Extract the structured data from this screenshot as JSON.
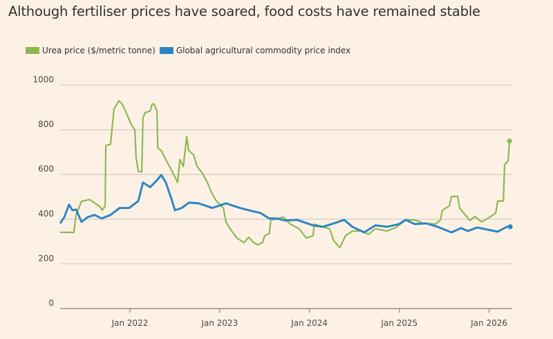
{
  "chart_data": {
    "type": "line",
    "title": "Although fertiliser prices have soared, food costs have remained stable",
    "xlabel": "",
    "ylabel": "",
    "ylim": [
      0,
      1000
    ],
    "xlim": [
      "2021-03-23",
      "2026-04-05"
    ],
    "yticks": [
      0,
      200,
      400,
      600,
      800,
      1000
    ],
    "xticks": [
      {
        "date": "2022-01-01",
        "label": "Jan 2022"
      },
      {
        "date": "2023-01-01",
        "label": "Jan 2023"
      },
      {
        "date": "2024-01-01",
        "label": "Jan 2024"
      },
      {
        "date": "2025-01-01",
        "label": "Jan 2025"
      },
      {
        "date": "2026-01-01",
        "label": "Jan 2026"
      }
    ],
    "grid": true,
    "legend_position": "top-left",
    "series": [
      {
        "name": "Urea price ($/metric tonne)",
        "color": "#8cb852",
        "end_marker": true,
        "points": [
          [
            "2021-03-23",
            341
          ],
          [
            "2021-05-18",
            341
          ],
          [
            "2021-05-27",
            420
          ],
          [
            "2021-06-18",
            480
          ],
          [
            "2021-07-22",
            488
          ],
          [
            "2021-08-13",
            470
          ],
          [
            "2021-09-02",
            455
          ],
          [
            "2021-09-10",
            440
          ],
          [
            "2021-09-22",
            459
          ],
          [
            "2021-09-25",
            729
          ],
          [
            "2021-10-14",
            735
          ],
          [
            "2021-10-28",
            893
          ],
          [
            "2021-11-17",
            930
          ],
          [
            "2021-12-01",
            915
          ],
          [
            "2021-12-18",
            874
          ],
          [
            "2022-01-07",
            822
          ],
          [
            "2022-01-21",
            800
          ],
          [
            "2022-01-26",
            676
          ],
          [
            "2022-02-04",
            614
          ],
          [
            "2022-02-18",
            611
          ],
          [
            "2022-02-23",
            853
          ],
          [
            "2022-03-04",
            877
          ],
          [
            "2022-03-24",
            884
          ],
          [
            "2022-04-01",
            915
          ],
          [
            "2022-04-09",
            915
          ],
          [
            "2022-04-21",
            884
          ],
          [
            "2022-04-24",
            719
          ],
          [
            "2022-05-08",
            707
          ],
          [
            "2022-05-27",
            667
          ],
          [
            "2022-06-16",
            626
          ],
          [
            "2022-07-14",
            564
          ],
          [
            "2022-07-23",
            667
          ],
          [
            "2022-08-06",
            636
          ],
          [
            "2022-08-20",
            769
          ],
          [
            "2022-08-28",
            707
          ],
          [
            "2022-09-17",
            688
          ],
          [
            "2022-10-01",
            636
          ],
          [
            "2022-10-23",
            605
          ],
          [
            "2022-11-12",
            564
          ],
          [
            "2022-12-02",
            512
          ],
          [
            "2022-12-19",
            481
          ],
          [
            "2023-01-16",
            450
          ],
          [
            "2023-01-27",
            388
          ],
          [
            "2023-02-12",
            357
          ],
          [
            "2023-03-12",
            316
          ],
          [
            "2023-04-09",
            295
          ],
          [
            "2023-04-29",
            319
          ],
          [
            "2023-05-19",
            295
          ],
          [
            "2023-06-05",
            285
          ],
          [
            "2023-06-24",
            295
          ],
          [
            "2023-07-03",
            326
          ],
          [
            "2023-07-22",
            335
          ],
          [
            "2023-07-28",
            397
          ],
          [
            "2023-08-20",
            400
          ],
          [
            "2023-09-17",
            410
          ],
          [
            "2023-10-15",
            378
          ],
          [
            "2023-11-20",
            357
          ],
          [
            "2023-12-19",
            316
          ],
          [
            "2024-01-16",
            326
          ],
          [
            "2024-01-21",
            378
          ],
          [
            "2024-02-24",
            366
          ],
          [
            "2024-03-23",
            357
          ],
          [
            "2024-04-09",
            304
          ],
          [
            "2024-05-04",
            273
          ],
          [
            "2024-05-27",
            326
          ],
          [
            "2024-06-24",
            347
          ],
          [
            "2024-07-31",
            347
          ],
          [
            "2024-08-28",
            332
          ],
          [
            "2024-09-25",
            357
          ],
          [
            "2024-11-12",
            347
          ],
          [
            "2024-12-18",
            363
          ],
          [
            "2025-01-27",
            397
          ],
          [
            "2025-03-04",
            397
          ],
          [
            "2025-04-10",
            381
          ],
          [
            "2025-05-28",
            378
          ],
          [
            "2025-06-17",
            397
          ],
          [
            "2025-06-25",
            440
          ],
          [
            "2025-07-23",
            459
          ],
          [
            "2025-08-01",
            502
          ],
          [
            "2025-08-26",
            502
          ],
          [
            "2025-09-03",
            450
          ],
          [
            "2025-09-26",
            419
          ],
          [
            "2025-10-15",
            394
          ],
          [
            "2025-11-04",
            412
          ],
          [
            "2025-12-02",
            388
          ],
          [
            "2026-01-08",
            412
          ],
          [
            "2026-01-28",
            428
          ],
          [
            "2026-02-05",
            481
          ],
          [
            "2026-02-28",
            481
          ],
          [
            "2026-03-05",
            645
          ],
          [
            "2026-03-19",
            660
          ],
          [
            "2026-03-25",
            750
          ]
        ]
      },
      {
        "name": "Global agricultural commodity price index",
        "color": "#2b87c3",
        "end_marker": true,
        "points": [
          [
            "2021-03-23",
            381
          ],
          [
            "2021-04-09",
            409
          ],
          [
            "2021-04-28",
            465
          ],
          [
            "2021-05-12",
            440
          ],
          [
            "2021-05-27",
            443
          ],
          [
            "2021-06-18",
            388
          ],
          [
            "2021-07-13",
            409
          ],
          [
            "2021-08-10",
            419
          ],
          [
            "2021-09-08",
            403
          ],
          [
            "2021-10-14",
            419
          ],
          [
            "2021-11-20",
            450
          ],
          [
            "2021-12-29",
            450
          ],
          [
            "2022-02-04",
            481
          ],
          [
            "2022-02-23",
            564
          ],
          [
            "2022-03-24",
            543
          ],
          [
            "2022-04-21",
            574
          ],
          [
            "2022-05-08",
            598
          ],
          [
            "2022-05-27",
            564
          ],
          [
            "2022-06-19",
            490
          ],
          [
            "2022-07-03",
            440
          ],
          [
            "2022-07-31",
            450
          ],
          [
            "2022-08-28",
            474
          ],
          [
            "2022-10-07",
            471
          ],
          [
            "2022-12-02",
            450
          ],
          [
            "2023-01-27",
            471
          ],
          [
            "2023-03-24",
            450
          ],
          [
            "2023-04-29",
            440
          ],
          [
            "2023-06-16",
            428
          ],
          [
            "2023-07-22",
            403
          ],
          [
            "2023-08-20",
            403
          ],
          [
            "2023-09-25",
            394
          ],
          [
            "2023-11-12",
            397
          ],
          [
            "2024-01-16",
            372
          ],
          [
            "2024-02-24",
            366
          ],
          [
            "2024-04-09",
            381
          ],
          [
            "2024-05-21",
            397
          ],
          [
            "2024-06-24",
            366
          ],
          [
            "2024-08-11",
            341
          ],
          [
            "2024-09-25",
            372
          ],
          [
            "2024-11-12",
            366
          ],
          [
            "2024-12-30",
            378
          ],
          [
            "2025-01-27",
            397
          ],
          [
            "2025-03-04",
            378
          ],
          [
            "2025-04-21",
            381
          ],
          [
            "2025-06-05",
            366
          ],
          [
            "2025-08-01",
            341
          ],
          [
            "2025-09-09",
            360
          ],
          [
            "2025-10-07",
            347
          ],
          [
            "2025-11-13",
            363
          ],
          [
            "2026-01-08",
            350
          ],
          [
            "2026-02-05",
            344
          ],
          [
            "2026-03-14",
            366
          ],
          [
            "2026-03-28",
            366
          ]
        ]
      }
    ]
  }
}
